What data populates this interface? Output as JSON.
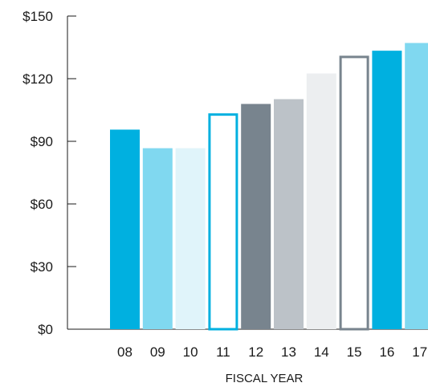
{
  "chart_data": {
    "type": "bar",
    "title": "",
    "xlabel": "FISCAL YEAR",
    "ylabel": "",
    "ylim": [
      0,
      150
    ],
    "yticks": [
      0,
      30,
      60,
      90,
      120,
      150
    ],
    "ytick_labels": [
      "$0",
      "$30",
      "$60",
      "$90",
      "$120",
      "$150"
    ],
    "grid": false,
    "categories": [
      "08",
      "09",
      "10",
      "11",
      "12",
      "13",
      "14",
      "15",
      "16",
      "17"
    ],
    "values": [
      95.6,
      86.7,
      86.7,
      103.4,
      107.9,
      110.2,
      122.5,
      131.0,
      133.4,
      137.1
    ],
    "bar_styles": [
      {
        "fill": "#00b0e0",
        "outline": false
      },
      {
        "fill": "#80d8f0",
        "outline": false
      },
      {
        "fill": "#e0f4fa",
        "outline": false
      },
      {
        "fill": "#00b0e0",
        "outline": true
      },
      {
        "fill": "#78848e",
        "outline": false
      },
      {
        "fill": "#bcc2c8",
        "outline": false
      },
      {
        "fill": "#eceef0",
        "outline": false
      },
      {
        "fill": "#78848e",
        "outline": true
      },
      {
        "fill": "#00b0e0",
        "outline": false
      },
      {
        "fill": "#80d8f0",
        "outline": false
      }
    ]
  }
}
